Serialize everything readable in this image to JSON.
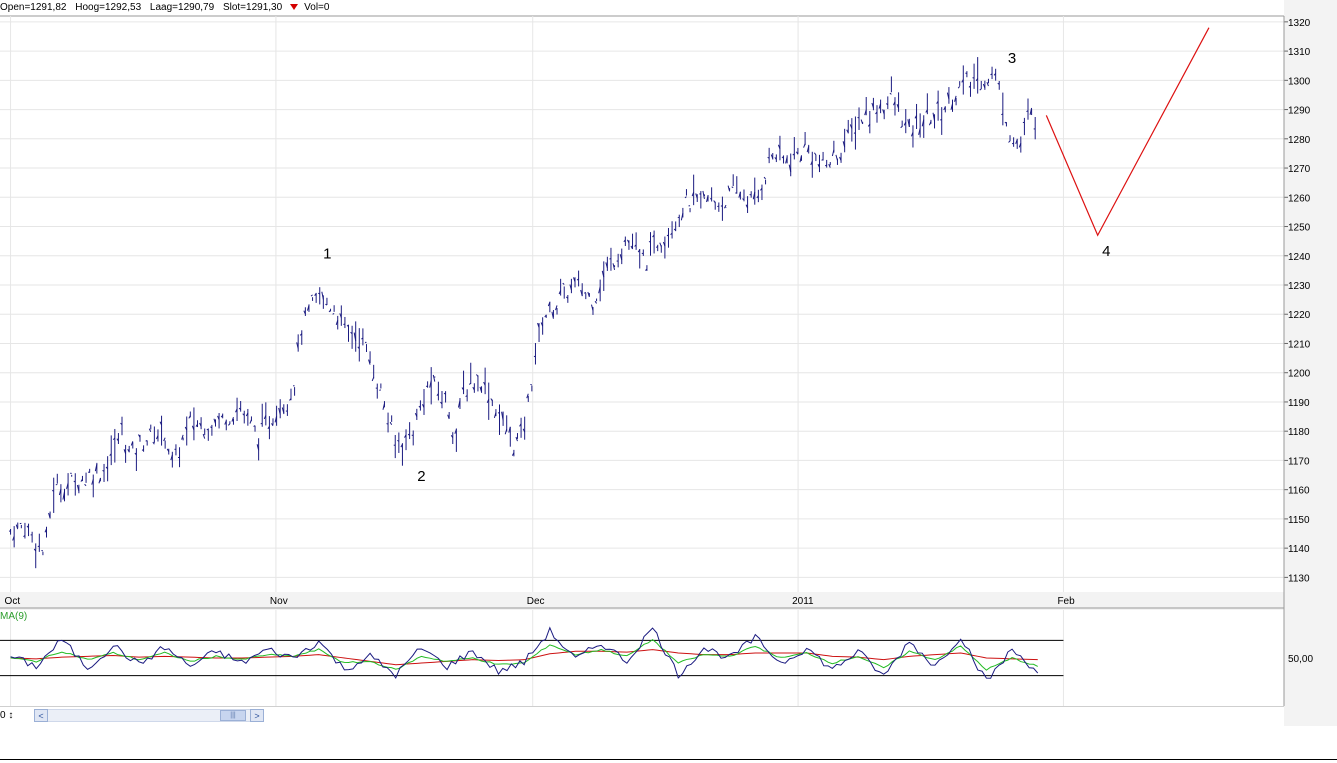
{
  "info_bar": {
    "open": "Open=1291,82",
    "high": "Hoog=1292,53",
    "low": "Laag=1290,79",
    "close": "Slot=1291,30",
    "vol": "Vol=0"
  },
  "colors": {
    "price": "#1a1a80",
    "forecast": "#dd1111",
    "grid": "#e6e6e6",
    "osc_line": "#1a1a80",
    "osc_signal": "#22bb22",
    "osc_ma": "#cc1111",
    "panel_bg": "#f3f3f3"
  },
  "oscillator": {
    "label": "MA(9)",
    "level_label": "50,00"
  },
  "scrollbar": {
    "left_text": "0 ↕",
    "left_arrow": "<",
    "right_arrow": ">"
  },
  "chart_data": {
    "type": "line",
    "style": "ohlc-bars",
    "ylim": [
      1125,
      1322
    ],
    "y_ticks": [
      1130,
      1140,
      1150,
      1160,
      1170,
      1180,
      1190,
      1200,
      1210,
      1220,
      1230,
      1240,
      1250,
      1260,
      1270,
      1280,
      1290,
      1300,
      1310,
      1320
    ],
    "y_tick_labels": [
      "1130",
      "1140",
      "1150",
      "1160",
      "1170",
      "1180",
      "1190",
      "1200",
      "1210",
      "1220",
      "1230",
      "1240",
      "1250",
      "1260",
      "1270",
      "1280",
      "1290",
      "1300",
      "1310",
      "1320"
    ],
    "x_tick_labels": [
      "Oct",
      "Nov",
      "Dec",
      "2011",
      "Feb"
    ],
    "x_tick_days": [
      0,
      31,
      61,
      92,
      123
    ],
    "x_domain_days": [
      -1,
      149
    ],
    "grid": true,
    "series": [
      {
        "x_days": [
          0,
          2,
          4,
          5,
          7,
          9,
          11,
          13,
          14,
          16,
          18,
          19,
          21,
          23,
          25,
          27,
          29,
          31,
          33,
          34,
          36,
          38,
          39,
          41,
          42,
          43,
          45,
          47,
          49,
          51,
          52,
          53,
          55,
          57,
          59,
          60,
          61,
          62,
          64,
          66,
          68,
          70,
          72,
          74,
          75,
          77,
          79,
          81,
          83,
          85,
          87,
          89,
          91,
          93,
          95,
          97,
          99,
          101,
          103,
          105,
          107,
          109,
          111,
          113,
          115,
          117,
          118,
          119,
          120
        ],
        "values": [
          1146,
          1147,
          1138,
          1160,
          1162,
          1165,
          1167,
          1180,
          1172,
          1178,
          1180,
          1168,
          1183,
          1182,
          1185,
          1188,
          1178,
          1187,
          1194,
          1215,
          1226,
          1222,
          1215,
          1212,
          1204,
          1196,
          1175,
          1180,
          1197,
          1190,
          1178,
          1195,
          1198,
          1186,
          1175,
          1180,
          1200,
          1218,
          1224,
          1230,
          1225,
          1237,
          1245,
          1238,
          1242,
          1250,
          1258,
          1259,
          1258,
          1262,
          1258,
          1275,
          1272,
          1277,
          1270,
          1276,
          1286,
          1290,
          1294,
          1282,
          1287,
          1290,
          1298,
          1300,
          1302,
          1280,
          1278,
          1288,
          1286
        ]
      },
      {
        "x_days": [
          121,
          127,
          140
        ],
        "values": [
          1288,
          1247,
          1318
        ]
      }
    ],
    "annotations": [
      {
        "text": "1",
        "x_day": 37,
        "y": 1239
      },
      {
        "text": "2",
        "x_day": 48,
        "y": 1163
      },
      {
        "text": "3",
        "x_day": 117,
        "y": 1306
      },
      {
        "text": "4",
        "x_day": 128,
        "y": 1240
      }
    ],
    "oscillator": {
      "ylim": [
        0,
        100
      ],
      "bands": [
        71,
        29
      ],
      "level": 50,
      "x_days": [
        0,
        3,
        6,
        9,
        12,
        15,
        18,
        21,
        24,
        27,
        30,
        33,
        36,
        39,
        42,
        45,
        48,
        51,
        54,
        57,
        60,
        63,
        66,
        69,
        72,
        75,
        78,
        81,
        84,
        87,
        90,
        93,
        96,
        99,
        102,
        105,
        108,
        111,
        114,
        117,
        120
      ],
      "values": [
        52,
        40,
        72,
        38,
        65,
        42,
        63,
        40,
        58,
        44,
        60,
        50,
        70,
        36,
        52,
        30,
        62,
        40,
        58,
        34,
        45,
        82,
        48,
        68,
        46,
        86,
        30,
        62,
        50,
        74,
        44,
        62,
        36,
        58,
        28,
        70,
        40,
        76,
        22,
        60,
        34
      ],
      "signal": [
        50,
        46,
        58,
        48,
        56,
        48,
        56,
        46,
        52,
        48,
        54,
        52,
        60,
        44,
        46,
        36,
        52,
        46,
        50,
        42,
        44,
        66,
        54,
        60,
        52,
        72,
        44,
        54,
        52,
        64,
        50,
        56,
        44,
        52,
        38,
        58,
        48,
        64,
        36,
        50,
        40
      ],
      "ma": [
        50,
        49,
        51,
        52,
        53,
        51,
        52,
        51,
        50,
        50,
        51,
        52,
        54,
        50,
        46,
        42,
        44,
        46,
        48,
        47,
        48,
        55,
        58,
        58,
        57,
        60,
        56,
        54,
        54,
        56,
        56,
        56,
        52,
        51,
        48,
        52,
        54,
        56,
        50,
        49,
        48
      ]
    }
  }
}
